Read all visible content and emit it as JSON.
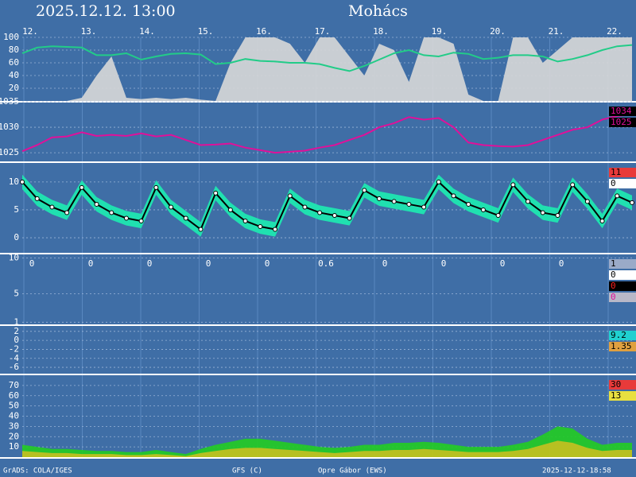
{
  "header": {
    "title": "2025.12.12. 13:00",
    "place": "Mohács",
    "days": [
      "12.",
      "13.",
      "14.",
      "15.",
      "16.",
      "17.",
      "18.",
      "19.",
      "20.",
      "21.",
      "22."
    ]
  },
  "chart_data": [
    {
      "type": "meteo",
      "ylim": [
        0,
        100
      ],
      "yticks": [
        20,
        40,
        60,
        80,
        100
      ],
      "grid": true,
      "series": [
        {
          "style": "area",
          "color": "#d8d8d8",
          "values": [
            0,
            0,
            0,
            0,
            5,
            40,
            70,
            5,
            3,
            5,
            3,
            5,
            2,
            0,
            60,
            100,
            100,
            100,
            90,
            60,
            100,
            100,
            70,
            40,
            90,
            80,
            30,
            100,
            100,
            90,
            10,
            0,
            0,
            100,
            100,
            60,
            80,
            100,
            100,
            100,
            100,
            100
          ]
        },
        {
          "style": "line",
          "color": "#22cc88",
          "values": [
            75,
            84,
            86,
            85,
            84,
            72,
            72,
            75,
            65,
            70,
            74,
            75,
            73,
            58,
            60,
            66,
            63,
            62,
            60,
            60,
            58,
            52,
            47,
            55,
            65,
            75,
            80,
            72,
            70,
            76,
            74,
            66,
            68,
            72,
            72,
            70,
            62,
            66,
            72,
            80,
            86,
            88
          ]
        }
      ],
      "side_labels": []
    },
    {
      "type": "meteo",
      "ylim": [
        1023.3,
        1035
      ],
      "yticks": [
        1025,
        1030,
        1035
      ],
      "grid": true,
      "series": [
        {
          "style": "line",
          "color": "#e0109a",
          "values": [
            1025.3,
            1026.5,
            1028,
            1028.2,
            1029,
            1028.3,
            1028.5,
            1028.3,
            1028.8,
            1028.2,
            1028.5,
            1027.5,
            1026.5,
            1026.6,
            1026.8,
            1026,
            1025.5,
            1025,
            1025.2,
            1025.4,
            1026,
            1026.5,
            1027.5,
            1028.5,
            1030,
            1030.8,
            1032,
            1031.5,
            1031.8,
            1030,
            1027,
            1026.5,
            1026.3,
            1026.2,
            1026.5,
            1027.5,
            1028.5,
            1029.5,
            1030,
            1031.5,
            1032.2,
            1032.5
          ]
        }
      ],
      "side_labels": [
        {
          "text": "1034",
          "bg": "#000000",
          "fg": "#e0109a"
        },
        {
          "text": "1025",
          "bg": "#000000",
          "fg": "#e0109a"
        }
      ]
    },
    {
      "type": "meteo",
      "ylim": [
        -2.7,
        13.4
      ],
      "yticks": [
        0,
        5,
        10
      ],
      "grid": true,
      "series": [
        {
          "style": "band",
          "color": "#20e0b0",
          "low": [
            8.7,
            5.7,
            4.2,
            3.2,
            7.7,
            4.7,
            3.2,
            2.2,
            1.7,
            7.7,
            4.2,
            2.2,
            0.2,
            6.7,
            3.7,
            1.7,
            0.7,
            0.2,
            6.2,
            4.2,
            3.2,
            2.7,
            2.2,
            7.2,
            5.7,
            5.2,
            4.7,
            4.2,
            8.7,
            6.2,
            4.7,
            3.7,
            2.7,
            8.2,
            5.2,
            3.2,
            2.7,
            8.2,
            5.2,
            1.7,
            6.2,
            5
          ],
          "high": [
            11.3,
            8.3,
            6.8,
            5.8,
            10.3,
            7.3,
            5.8,
            4.8,
            4.3,
            10.3,
            6.8,
            4.8,
            2.8,
            9.3,
            6.3,
            4.3,
            3.3,
            2.8,
            8.8,
            6.8,
            5.8,
            5.3,
            4.8,
            9.8,
            8.3,
            7.8,
            7.3,
            6.8,
            11.3,
            8.8,
            7.3,
            6.3,
            5.3,
            10.8,
            7.8,
            5.8,
            5.3,
            10.8,
            7.8,
            4.3,
            8.8,
            7.6
          ]
        },
        {
          "style": "line",
          "color": "#000000",
          "markers": true,
          "values": [
            10,
            7,
            5.5,
            4.5,
            9,
            6,
            4.5,
            3.5,
            3,
            9,
            5.5,
            3.5,
            1.5,
            8,
            5,
            3,
            2,
            1.5,
            7.5,
            5.5,
            4.5,
            4,
            3.5,
            8.5,
            7,
            6.5,
            6,
            5.5,
            10,
            7.5,
            6,
            5,
            4,
            9.5,
            6.5,
            4.5,
            4,
            9.5,
            6.5,
            3,
            7.5,
            6.3
          ]
        }
      ],
      "side_labels": [
        {
          "text": "11",
          "bg": "#e83a3a",
          "fg": "#000000"
        },
        {
          "text": "0",
          "bg": "#ffffff",
          "fg": "#000000"
        }
      ]
    },
    {
      "type": "meteo",
      "ylim": [
        0.7,
        10.5
      ],
      "yticks": [
        1,
        5,
        10
      ],
      "grid": true,
      "series": [],
      "annotations": [
        "0",
        "0",
        "0",
        "0",
        "0",
        "0.6",
        "0",
        "0",
        "0",
        "0"
      ],
      "side_labels": [
        {
          "text": "1",
          "bg": "#9aaac8",
          "fg": "#000000"
        },
        {
          "text": "0",
          "bg": "#ffffff",
          "fg": "#000000"
        },
        {
          "text": "0",
          "bg": "#000000",
          "fg": "#ff2020"
        },
        {
          "text": "0",
          "bg": "#b8b8c8",
          "fg": "#e0109a"
        }
      ]
    },
    {
      "type": "meteo",
      "ylim": [
        -7.4,
        3.2
      ],
      "yticks": [
        2,
        0,
        -2,
        -4,
        -6
      ],
      "grid": true,
      "series": [],
      "side_labels": [
        {
          "text": "9.2",
          "bg": "#20d0d0",
          "fg": "#000000"
        },
        {
          "text": "1.35",
          "bg": "#e0a040",
          "fg": "#000000"
        }
      ]
    },
    {
      "type": "meteo",
      "ylim": [
        0,
        80
      ],
      "yticks": [
        10,
        20,
        30,
        40,
        50,
        60,
        70
      ],
      "grid": true,
      "series": [
        {
          "style": "area",
          "color": "#22cc22",
          "values": [
            12,
            10,
            8,
            8,
            7,
            6,
            6,
            5,
            5,
            7,
            5,
            3,
            8,
            12,
            15,
            18,
            18,
            16,
            14,
            12,
            10,
            9,
            10,
            12,
            12,
            14,
            14,
            15,
            14,
            12,
            10,
            10,
            10,
            12,
            15,
            22,
            30,
            28,
            18,
            12,
            14,
            14
          ]
        },
        {
          "style": "area",
          "color": "#c8c020",
          "values": [
            6,
            5,
            4,
            4,
            3,
            3,
            3,
            2,
            2,
            3,
            2,
            1,
            4,
            6,
            8,
            9,
            9,
            8,
            7,
            6,
            5,
            4,
            5,
            6,
            6,
            7,
            7,
            8,
            7,
            6,
            5,
            5,
            5,
            6,
            8,
            12,
            16,
            14,
            9,
            6,
            7,
            7
          ]
        }
      ],
      "side_labels": [
        {
          "text": "30",
          "bg": "#e83a3a",
          "fg": "#000000"
        },
        {
          "text": "13",
          "bg": "#e8e040",
          "fg": "#000000"
        }
      ]
    }
  ],
  "footer": {
    "left": "GrADS: COLA/IGES",
    "model": "GFS (C)",
    "author": "Opre Gábor (EWS)",
    "stamp": "2025-12-12-18:58"
  }
}
